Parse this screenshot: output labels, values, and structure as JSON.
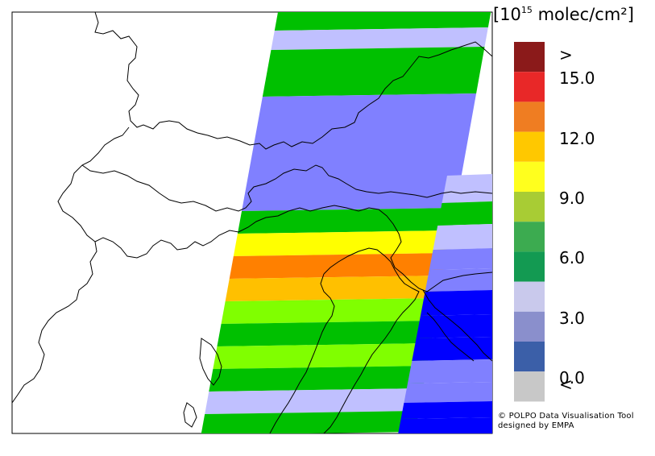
{
  "colorbar": {
    "unit_prefix": "[10",
    "unit_exponent": "15",
    "unit_suffix": " molec/cm²]",
    "classes": [
      {
        "label": ">",
        "color": "#8b1a1a"
      },
      {
        "label": "",
        "color": "#e82828"
      },
      {
        "label": "",
        "color": "#ef7d22"
      },
      {
        "label": "",
        "color": "#ffc800"
      },
      {
        "label": "",
        "color": "#ffff1e"
      },
      {
        "label": "",
        "color": "#a8cc34"
      },
      {
        "label": "",
        "color": "#3cab50"
      },
      {
        "label": "",
        "color": "#139a52"
      },
      {
        "label": "",
        "color": "#c9c9ec"
      },
      {
        "label": "",
        "color": "#8a8fcc"
      },
      {
        "label": "",
        "color": "#3b5fa8"
      },
      {
        "label": "<",
        "color": "#c8c8c8"
      }
    ],
    "tick_labels": [
      "15.0",
      "12.0",
      "9.0",
      "6.0",
      "3.0",
      "0.0"
    ]
  },
  "palette": {
    "green": "#00c000",
    "lavender": "#c0c0ff",
    "periwinkle": "#8080ff",
    "yellow": "#ffff00",
    "orange": "#ff8000",
    "amber": "#ffc000",
    "lime": "#80ff00",
    "blue": "#0000ff"
  },
  "credit": {
    "line1": "© POLPO Data Visualisation Tool",
    "line2": "designed by EMPA"
  }
}
